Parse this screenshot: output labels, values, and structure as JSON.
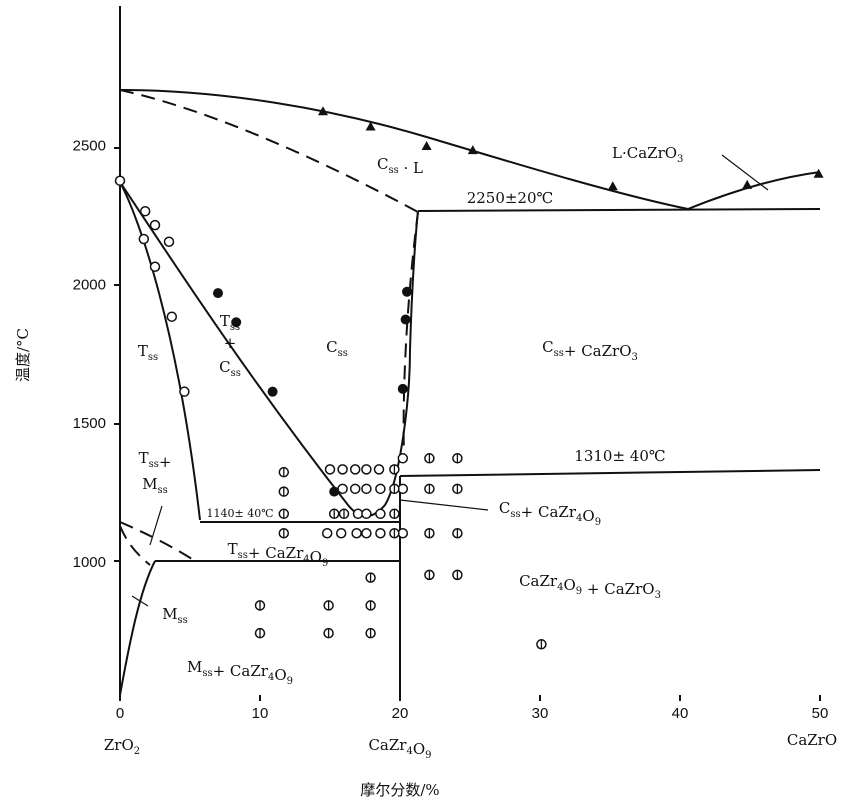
{
  "chart_data": {
    "type": "phase-diagram",
    "xlabel": "摩尔分数/%",
    "ylabel": "温度/°C",
    "x_ticks": [
      0,
      10,
      20,
      30,
      40,
      50
    ],
    "y_ticks": [
      1000,
      1500,
      2000,
      2500
    ],
    "xlim": [
      0,
      50
    ],
    "ylim": [
      500,
      2950
    ],
    "compounds": {
      "left": "ZrO2",
      "middle": "CaZr4O9",
      "right": "CaZrO"
    },
    "annotations": {
      "eutectic_high": "2250±20℃",
      "invariant_mid": "1310± 40℃",
      "invariant_low": "1140± 40℃"
    },
    "regions": [
      {
        "id": "css-l",
        "label": "Css · L"
      },
      {
        "id": "l-cazro3",
        "label": "L·CaZrO3"
      },
      {
        "id": "tss",
        "label": "Tss"
      },
      {
        "id": "tss-css",
        "label": "Tss + Css"
      },
      {
        "id": "css",
        "label": "Css"
      },
      {
        "id": "css-cazro3",
        "label": "Css+ CaZrO3"
      },
      {
        "id": "tss-mss",
        "label": "Tss+ Mss"
      },
      {
        "id": "css-cazr4o9",
        "label": "Css+ CaZr4O9"
      },
      {
        "id": "tss-cazr4o9",
        "label": "Tss+ CaZr4O9"
      },
      {
        "id": "mss",
        "label": "Mss"
      },
      {
        "id": "cazr4o9-cazro3",
        "label": "CaZr4O9 + CaZrO3"
      },
      {
        "id": "mss-cazr4o9",
        "label": "Mss+ CaZr4O9"
      }
    ],
    "series": [
      {
        "marker": "triangle",
        "points": [
          [
            14.5,
            2620
          ],
          [
            17.9,
            2565
          ],
          [
            21.9,
            2495
          ],
          [
            25.2,
            2480
          ],
          [
            35.2,
            2350
          ],
          [
            44.8,
            2355
          ],
          [
            49.9,
            2395
          ]
        ]
      },
      {
        "marker": "open-circle",
        "points": [
          [
            0,
            2370
          ],
          [
            1.8,
            2260
          ],
          [
            2.5,
            2210
          ],
          [
            3.5,
            2150
          ],
          [
            1.7,
            2160
          ],
          [
            2.5,
            2060
          ],
          [
            3.7,
            1880
          ],
          [
            4.6,
            1610
          ]
        ]
      },
      {
        "marker": "filled-circle",
        "points": [
          [
            7,
            1965
          ],
          [
            8.3,
            1860
          ],
          [
            10.9,
            1610
          ],
          [
            15.3,
            1250
          ],
          [
            20.5,
            1970
          ],
          [
            20.4,
            1870
          ],
          [
            20.2,
            1620
          ]
        ]
      },
      {
        "marker": "open-circle",
        "points": [
          [
            15,
            1330
          ],
          [
            15.9,
            1330
          ],
          [
            16.8,
            1330
          ],
          [
            17.6,
            1330
          ],
          [
            18.5,
            1330
          ],
          [
            15.9,
            1260
          ],
          [
            16.8,
            1260
          ],
          [
            17.6,
            1260
          ],
          [
            18.6,
            1260
          ],
          [
            17,
            1170
          ],
          [
            17.6,
            1170
          ],
          [
            18.6,
            1170
          ],
          [
            14.8,
            1100
          ],
          [
            15.8,
            1100
          ],
          [
            16.9,
            1100
          ],
          [
            17.6,
            1100
          ],
          [
            18.6,
            1100
          ],
          [
            20.2,
            1370
          ],
          [
            20.2,
            1260
          ],
          [
            20.2,
            1100
          ]
        ]
      },
      {
        "marker": "crossed-circle",
        "points": [
          [
            11.7,
            1320
          ],
          [
            11.7,
            1250
          ],
          [
            11.7,
            1170
          ],
          [
            11.7,
            1100
          ],
          [
            15.3,
            1170
          ],
          [
            16,
            1170
          ],
          [
            19.6,
            1330
          ],
          [
            19.6,
            1260
          ],
          [
            19.6,
            1170
          ],
          [
            19.6,
            1100
          ],
          [
            22.1,
            1370
          ],
          [
            24.1,
            1370
          ],
          [
            22.1,
            1260
          ],
          [
            24.1,
            1260
          ],
          [
            22.1,
            1100
          ],
          [
            24.1,
            1100
          ],
          [
            22.1,
            950
          ],
          [
            24.1,
            950
          ],
          [
            17.9,
            940
          ],
          [
            10,
            840
          ],
          [
            14.9,
            840
          ],
          [
            17.9,
            840
          ],
          [
            10,
            740
          ],
          [
            14.9,
            740
          ],
          [
            17.9,
            740
          ],
          [
            30.1,
            700
          ]
        ]
      }
    ]
  }
}
